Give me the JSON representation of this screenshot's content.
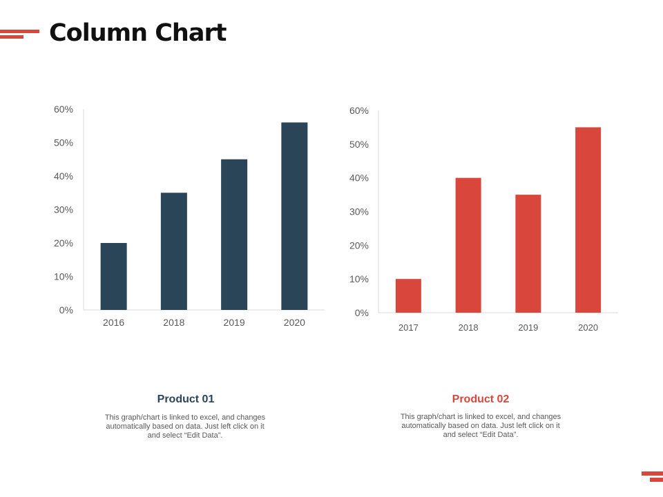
{
  "title": "Column Chart",
  "colors": {
    "accent": "#d9463c",
    "dark": "#2a4458"
  },
  "chart_data": [
    {
      "type": "bar",
      "categories": [
        "2016",
        "2018",
        "2019",
        "2020"
      ],
      "values": [
        20,
        35,
        45,
        56
      ],
      "ylim": [
        0,
        60
      ],
      "yticks": [
        "0%",
        "10%",
        "20%",
        "30%",
        "40%",
        "50%",
        "60%"
      ],
      "color": "#2a4458",
      "grid": false
    },
    {
      "type": "bar",
      "categories": [
        "2017",
        "2018",
        "2019",
        "2020"
      ],
      "values": [
        10,
        40,
        35,
        55
      ],
      "ylim": [
        0,
        60
      ],
      "yticks": [
        "0%",
        "10%",
        "20%",
        "30%",
        "40%",
        "50%",
        "60%"
      ],
      "color": "#d9463c",
      "grid": false
    }
  ],
  "products": [
    {
      "title": "Product 01",
      "desc": [
        "This graph/chart is linked to excel, and changes",
        "automatically based on data. Just left click on it",
        "and select “Edit Data”."
      ]
    },
    {
      "title": "Product 02",
      "desc": [
        "This graph/chart is linked to excel, and changes",
        "automatically based on data. Just left click on it",
        "and select “Edit Data”."
      ]
    }
  ]
}
